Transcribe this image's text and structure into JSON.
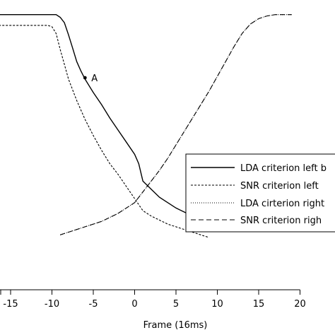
{
  "chart_data": {
    "type": "line",
    "xlabel": "Frame (16ms)",
    "xlim": [
      -18.5,
      20
    ],
    "ylim": [
      0,
      1
    ],
    "x_ticks": [
      -15,
      -10,
      -5,
      0,
      5,
      10,
      15,
      20
    ],
    "legend_position": "right",
    "series": [
      {
        "name": "LDA criterion left b",
        "style": "solid",
        "points": [
          [
            -19,
            0.985
          ],
          [
            -9.5,
            0.985
          ],
          [
            -9,
            0.975
          ],
          [
            -8.5,
            0.955
          ],
          [
            -8,
            0.91
          ],
          [
            -7.5,
            0.86
          ],
          [
            -7,
            0.81
          ],
          [
            -6.5,
            0.775
          ],
          [
            -6,
            0.745
          ],
          [
            -5,
            0.695
          ],
          [
            -4,
            0.65
          ],
          [
            -3,
            0.6
          ],
          [
            -2,
            0.555
          ],
          [
            -1,
            0.51
          ],
          [
            0,
            0.465
          ],
          [
            0.5,
            0.43
          ],
          [
            1,
            0.365
          ],
          [
            2,
            0.335
          ],
          [
            3,
            0.305
          ],
          [
            4,
            0.285
          ],
          [
            5,
            0.265
          ],
          [
            6,
            0.25
          ],
          [
            7,
            0.235
          ],
          [
            8,
            0.22
          ],
          [
            9,
            0.205
          ]
        ],
        "annotation": {
          "label": "A",
          "x": -6,
          "y": 0.75
        }
      },
      {
        "name": "SNR criterion left",
        "style": "dashed-fine",
        "points": [
          [
            -19,
            0.945
          ],
          [
            -10.5,
            0.945
          ],
          [
            -10,
            0.94
          ],
          [
            -9.5,
            0.915
          ],
          [
            -9,
            0.855
          ],
          [
            -8.5,
            0.8
          ],
          [
            -8,
            0.745
          ],
          [
            -7,
            0.665
          ],
          [
            -6,
            0.595
          ],
          [
            -5,
            0.535
          ],
          [
            -4,
            0.48
          ],
          [
            -3,
            0.43
          ],
          [
            -2,
            0.39
          ],
          [
            -1,
            0.345
          ],
          [
            0,
            0.3
          ],
          [
            1,
            0.255
          ],
          [
            2,
            0.235
          ],
          [
            3,
            0.22
          ],
          [
            4,
            0.205
          ],
          [
            5,
            0.195
          ],
          [
            6,
            0.185
          ],
          [
            7,
            0.175
          ],
          [
            8,
            0.165
          ],
          [
            9,
            0.155
          ]
        ]
      },
      {
        "name": "LDA cirterion right",
        "style": "dotted",
        "points": [
          [
            -9,
            0.165
          ],
          [
            -8,
            0.175
          ],
          [
            -7,
            0.185
          ],
          [
            -6,
            0.195
          ],
          [
            -5,
            0.205
          ],
          [
            -4,
            0.215
          ],
          [
            -3,
            0.23
          ],
          [
            -2,
            0.245
          ],
          [
            -1,
            0.265
          ],
          [
            0,
            0.285
          ],
          [
            1,
            0.325
          ],
          [
            2,
            0.365
          ],
          [
            3,
            0.405
          ],
          [
            4,
            0.45
          ],
          [
            5,
            0.5
          ],
          [
            6,
            0.55
          ],
          [
            7,
            0.6
          ],
          [
            8,
            0.65
          ],
          [
            9,
            0.7
          ],
          [
            10,
            0.755
          ],
          [
            11,
            0.81
          ],
          [
            12,
            0.865
          ],
          [
            13,
            0.915
          ],
          [
            14,
            0.95
          ],
          [
            15,
            0.97
          ],
          [
            16,
            0.98
          ],
          [
            17,
            0.985
          ],
          [
            18,
            0.985
          ],
          [
            19,
            0.985
          ]
        ]
      },
      {
        "name": "SNR criterion righ",
        "style": "dashed",
        "points": [
          [
            -9,
            0.165
          ],
          [
            -8,
            0.175
          ],
          [
            -7,
            0.185
          ],
          [
            -6,
            0.195
          ],
          [
            -5,
            0.205
          ],
          [
            -4,
            0.215
          ],
          [
            -3,
            0.23
          ],
          [
            -2,
            0.245
          ],
          [
            -1,
            0.265
          ],
          [
            0,
            0.285
          ],
          [
            1,
            0.325
          ],
          [
            2,
            0.365
          ],
          [
            3,
            0.405
          ],
          [
            4,
            0.45
          ],
          [
            5,
            0.5
          ],
          [
            6,
            0.55
          ],
          [
            7,
            0.6
          ],
          [
            8,
            0.65
          ],
          [
            9,
            0.7
          ],
          [
            10,
            0.755
          ],
          [
            11,
            0.81
          ],
          [
            12,
            0.865
          ],
          [
            13,
            0.915
          ],
          [
            14,
            0.95
          ],
          [
            15,
            0.97
          ],
          [
            16,
            0.98
          ],
          [
            17,
            0.985
          ],
          [
            18,
            0.985
          ],
          [
            19,
            0.985
          ]
        ]
      }
    ]
  }
}
